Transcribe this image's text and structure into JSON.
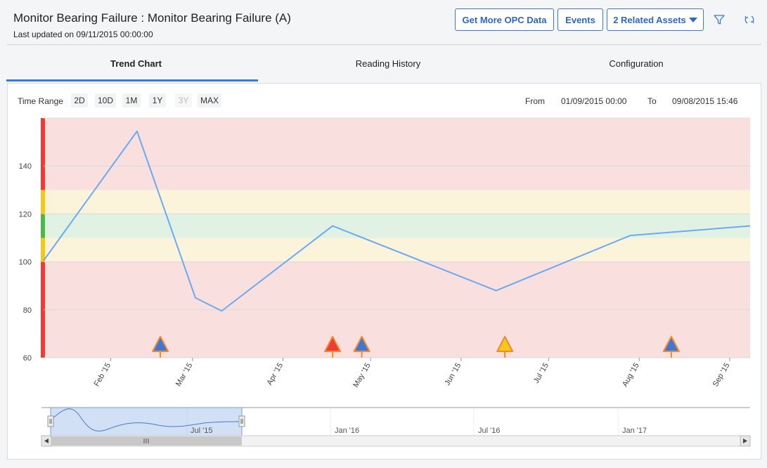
{
  "header": {
    "title": "Monitor Bearing Failure : Monitor Bearing Failure (A)",
    "last_updated": "Last updated on 09/11/2015 00:00:00",
    "buttons": {
      "opc": "Get More OPC Data",
      "events": "Events",
      "related": "2 Related Assets"
    },
    "icons": [
      "filter-icon",
      "refresh-icon"
    ]
  },
  "tabs": [
    {
      "label": "Trend Chart",
      "active": true
    },
    {
      "label": "Reading History",
      "active": false
    },
    {
      "label": "Configuration",
      "active": false
    }
  ],
  "toolbar": {
    "time_range_label": "Time Range",
    "ranges": [
      {
        "label": "2D",
        "enabled": true
      },
      {
        "label": "10D",
        "enabled": true
      },
      {
        "label": "1M",
        "enabled": true
      },
      {
        "label": "1Y",
        "enabled": true
      },
      {
        "label": "3Y",
        "enabled": false
      },
      {
        "label": "MAX",
        "enabled": true
      }
    ],
    "from_label": "From",
    "from_value": "01/09/2015 00:00",
    "to_label": "To",
    "to_value": "09/08/2015 15:46"
  },
  "colors": {
    "accent": "#3a7bd5",
    "line": "#6aaaf2",
    "alert_band": "#f9e0df",
    "warning_band": "#fbf3da",
    "normal_band": "#e1f2e5",
    "alert_bar": "#ee3b33",
    "warning_bar": "#f6c719",
    "normal_bar": "#4cb848"
  },
  "chart_data": {
    "type": "line",
    "x_start": "2015-01-09",
    "x_end": "2015-09-08",
    "ylim": [
      60,
      160
    ],
    "yticks": [
      60,
      80,
      100,
      120,
      140
    ],
    "xticks": [
      "Feb '15",
      "Mar '15",
      "Apr '15",
      "May '15",
      "Jun '15",
      "Jul '15",
      "Aug '15",
      "Sep '15"
    ],
    "xtick_dates": [
      "2015-02-01",
      "2015-03-01",
      "2015-04-01",
      "2015-05-01",
      "2015-06-01",
      "2015-07-01",
      "2015-08-01",
      "2015-09-01"
    ],
    "bands": [
      {
        "from": 60,
        "to": 100,
        "level": "alert"
      },
      {
        "from": 100,
        "to": 110,
        "level": "warning"
      },
      {
        "from": 110,
        "to": 120,
        "level": "normal"
      },
      {
        "from": 120,
        "to": 130,
        "level": "warning"
      },
      {
        "from": 130,
        "to": 160,
        "level": "alert"
      }
    ],
    "series": [
      {
        "x": [
          "2015-01-09",
          "2015-02-10",
          "2015-03-02",
          "2015-03-11",
          "2015-04-18",
          "2015-06-13",
          "2015-07-29",
          "2015-09-08"
        ],
        "values": [
          100.5,
          154.5,
          85,
          79.5,
          115,
          88,
          111,
          115
        ]
      }
    ],
    "markers": [
      {
        "date": "2015-02-18",
        "type": "event-blue"
      },
      {
        "date": "2015-04-18",
        "type": "event-red"
      },
      {
        "date": "2015-04-28",
        "type": "event-blue"
      },
      {
        "date": "2015-06-16",
        "type": "event-yellow"
      },
      {
        "date": "2015-08-12",
        "type": "event-blue"
      }
    ]
  },
  "navigator": {
    "labels": [
      "Jul '15",
      "Jan '16",
      "Jul '16",
      "Jan '17"
    ]
  }
}
